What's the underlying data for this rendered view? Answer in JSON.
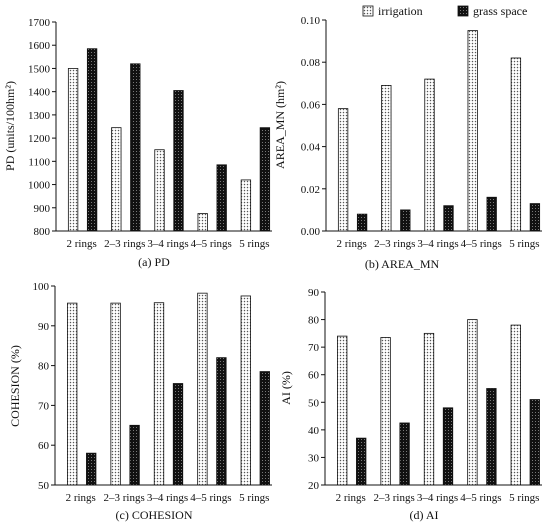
{
  "legend": {
    "items": [
      {
        "label": "irrigation",
        "pattern": "dots"
      },
      {
        "label": "grass space",
        "pattern": "dark"
      }
    ]
  },
  "chart_data": [
    {
      "type": "bar",
      "caption": "(a) PD",
      "ylabel": "PD (units/100hm²)",
      "categories": [
        "2 rings",
        "2–3 rings",
        "3–4 rings",
        "4–5 rings",
        "5 rings"
      ],
      "ylim": [
        800,
        1700
      ],
      "yticks": [
        800,
        900,
        1000,
        1100,
        1200,
        1300,
        1400,
        1500,
        1600,
        1700
      ],
      "tick_labels": [
        "800",
        "900",
        "1000",
        "1100",
        "1200",
        "1300",
        "1400",
        "1500",
        "1600",
        "1700"
      ],
      "series": [
        {
          "name": "irrigation",
          "values": [
            1500,
            1245,
            1150,
            875,
            1020
          ]
        },
        {
          "name": "grass space",
          "values": [
            1585,
            1520,
            1405,
            1085,
            1245
          ]
        }
      ]
    },
    {
      "type": "bar",
      "caption": "(b) AREA_MN",
      "ylabel": "AREA_MN (hm²)",
      "categories": [
        "2 rings",
        "2–3 rings",
        "3–4 rings",
        "4–5 rings",
        "5 rings"
      ],
      "ylim": [
        0,
        0.1
      ],
      "yticks": [
        0,
        0.02,
        0.04,
        0.06,
        0.08,
        0.1
      ],
      "tick_labels": [
        "0.00",
        "0.02",
        "0.04",
        "0.06",
        "0.08",
        "0.10"
      ],
      "series": [
        {
          "name": "irrigation",
          "values": [
            0.058,
            0.069,
            0.072,
            0.095,
            0.082
          ]
        },
        {
          "name": "grass space",
          "values": [
            0.008,
            0.01,
            0.012,
            0.016,
            0.013
          ]
        }
      ]
    },
    {
      "type": "bar",
      "caption": "(c) COHESION",
      "ylabel": "COHESION (%)",
      "categories": [
        "2 rings",
        "2–3 rings",
        "3–4 rings",
        "4–5 rings",
        "5 rings"
      ],
      "ylim": [
        50,
        100
      ],
      "yticks": [
        50,
        60,
        70,
        80,
        90,
        100
      ],
      "tick_labels": [
        "50",
        "60",
        "70",
        "80",
        "90",
        "100"
      ],
      "series": [
        {
          "name": "irrigation",
          "values": [
            95.7,
            95.7,
            95.8,
            98.2,
            97.5
          ]
        },
        {
          "name": "grass space",
          "values": [
            58,
            65,
            75.5,
            82,
            78.5
          ]
        }
      ]
    },
    {
      "type": "bar",
      "caption": "(d) AI",
      "ylabel": "AI (%)",
      "categories": [
        "2 rings",
        "2–3 rings",
        "3–4 rings",
        "4–5 rings",
        "5 rings"
      ],
      "ylim": [
        20,
        90
      ],
      "yticks": [
        20,
        30,
        40,
        50,
        60,
        70,
        80,
        90
      ],
      "tick_labels": [
        "20",
        "30",
        "40",
        "50",
        "60",
        "70",
        "80",
        "90"
      ],
      "series": [
        {
          "name": "irrigation",
          "values": [
            74,
            73.5,
            75,
            80,
            78
          ]
        },
        {
          "name": "grass space",
          "values": [
            37,
            42.5,
            48,
            55,
            51
          ]
        }
      ]
    }
  ],
  "colors": {
    "dark_bar": "#111111",
    "dot_fill": "#ffffff",
    "dot_color": "#555555",
    "axis": "#111111"
  }
}
